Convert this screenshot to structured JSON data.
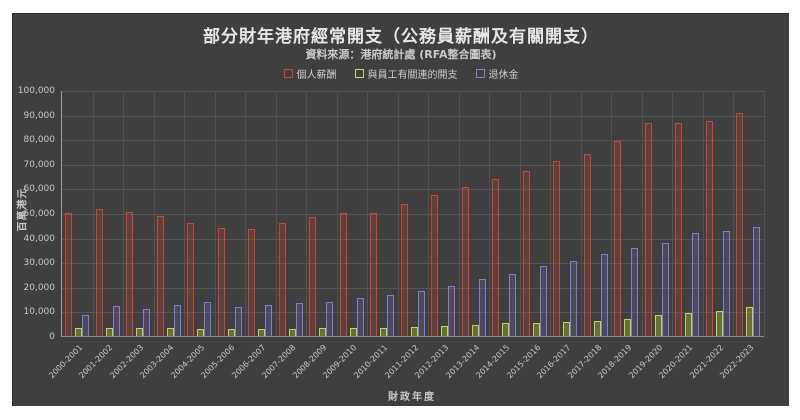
{
  "page": {
    "title": "部分財年港府經常開支（公務員薪酬及有關開支）",
    "subtitle": "資料來源：港府統計處 (RFA整合圖表)"
  },
  "colors": {
    "background": "#3f3f3f",
    "page": "#ffffff",
    "grid": "#565656",
    "text": "#c8c8c8",
    "series_red": "#cc4638",
    "series_green": "#c8cf5c",
    "series_purple": "#8a7ad0"
  },
  "chart_data": {
    "type": "bar",
    "title": "部分財年港府經常開支（公務員薪酬及有關開支）",
    "subtitle": "資料來源：港府統計處 (RFA整合圖表)",
    "xlabel": "財政年度",
    "ylabel": "百萬港元",
    "ylim": [
      0,
      100000
    ],
    "ytick_step": 10000,
    "grid": true,
    "legend_position": "top",
    "categories": [
      "2000-2001",
      "2001-2002",
      "2002-2003",
      "2003-2004",
      "2004-2005",
      "2005-2006",
      "2006-2007",
      "2007-2008",
      "2008-2009",
      "2009-2010",
      "2010-2011",
      "2011-2012",
      "2012-2013",
      "2013-2014",
      "2014-2015",
      "2015-2016",
      "2016-2017",
      "2017-2018",
      "2018-2019",
      "2019-2020",
      "2020-2021",
      "2021-2022",
      "2022-2023"
    ],
    "series": [
      {
        "name": "個人薪酬",
        "border": "#cc4638",
        "fill": "rgba(200,70,58,0.22)",
        "values": [
          50500,
          52200,
          51000,
          49000,
          46200,
          44500,
          44000,
          46400,
          48900,
          50300,
          50500,
          54000,
          57800,
          61000,
          64300,
          67500,
          71700,
          74500,
          79500,
          87200,
          87200,
          88000,
          91000
        ]
      },
      {
        "name": "與員工有關連的開支",
        "border": "#c8cf5c",
        "fill": "rgba(140,160,50,0.50)",
        "values": [
          3500,
          3600,
          3500,
          3500,
          3400,
          3300,
          3300,
          3400,
          3500,
          3600,
          3800,
          4000,
          4500,
          5000,
          5500,
          5800,
          6000,
          6600,
          7400,
          9000,
          9700,
          10500,
          12300
        ]
      },
      {
        "name": "退休金",
        "border": "#8a7ad0",
        "fill": "rgba(130,115,200,0.20)",
        "values": [
          8900,
          12600,
          11300,
          13000,
          14200,
          12400,
          13000,
          13700,
          14400,
          15700,
          17000,
          18700,
          20800,
          23400,
          25600,
          28900,
          31100,
          33700,
          36100,
          38300,
          42300,
          43200,
          44800
        ]
      }
    ]
  }
}
